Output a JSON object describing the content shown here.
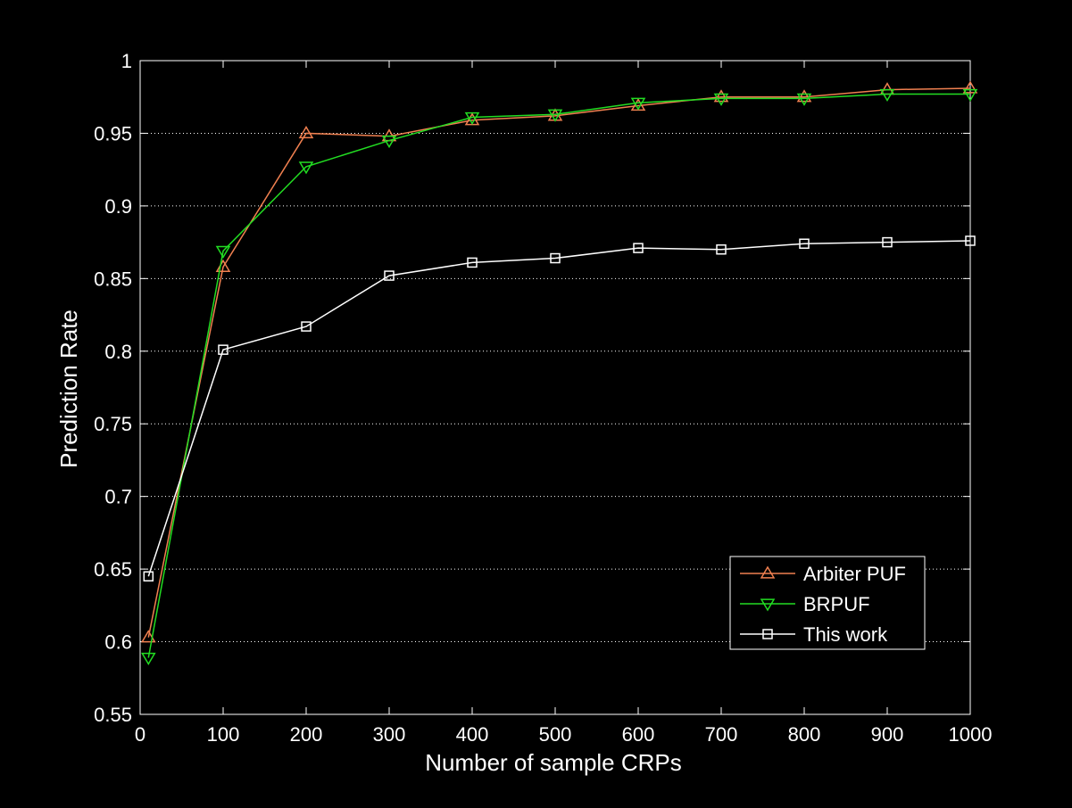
{
  "chart_data": {
    "type": "line",
    "xlabel": "Number of sample CRPs",
    "ylabel": "Prediction Rate",
    "xlim": [
      0,
      1000
    ],
    "ylim": [
      0.55,
      1.0
    ],
    "x_ticks": [
      0,
      100,
      200,
      300,
      400,
      500,
      600,
      700,
      800,
      900,
      1000
    ],
    "x_tick_labels": [
      "0",
      "100",
      "200",
      "300",
      "400",
      "500",
      "600",
      "700",
      "800",
      "900",
      "1000"
    ],
    "y_ticks": [
      0.55,
      0.6,
      0.65,
      0.7,
      0.75,
      0.8,
      0.85,
      0.9,
      0.95,
      1.0
    ],
    "y_tick_labels": [
      "0.55",
      "0.6",
      "0.65",
      "0.7",
      "0.75",
      "0.8",
      "0.85",
      "0.9",
      "0.95",
      "1"
    ],
    "grid": "horizontal dotted",
    "legend_position": "bottom-right",
    "series": [
      {
        "name": "Arbiter PUF",
        "color": "#f08050",
        "marker": "triangle-up",
        "x": [
          10,
          100,
          200,
          300,
          400,
          500,
          600,
          700,
          800,
          900,
          1000
        ],
        "y": [
          0.603,
          0.858,
          0.95,
          0.948,
          0.959,
          0.962,
          0.969,
          0.975,
          0.975,
          0.98,
          0.981
        ]
      },
      {
        "name": "BRPUF",
        "color": "#22dd22",
        "marker": "triangle-down",
        "x": [
          10,
          100,
          200,
          300,
          400,
          500,
          600,
          700,
          800,
          900,
          1000
        ],
        "y": [
          0.589,
          0.869,
          0.927,
          0.945,
          0.961,
          0.963,
          0.971,
          0.974,
          0.974,
          0.977,
          0.977
        ]
      },
      {
        "name": "This work",
        "color": "#ffffff",
        "marker": "square",
        "x": [
          10,
          100,
          200,
          300,
          400,
          500,
          600,
          700,
          800,
          900,
          1000
        ],
        "y": [
          0.645,
          0.801,
          0.817,
          0.852,
          0.861,
          0.864,
          0.871,
          0.87,
          0.874,
          0.875,
          0.876
        ]
      }
    ]
  }
}
